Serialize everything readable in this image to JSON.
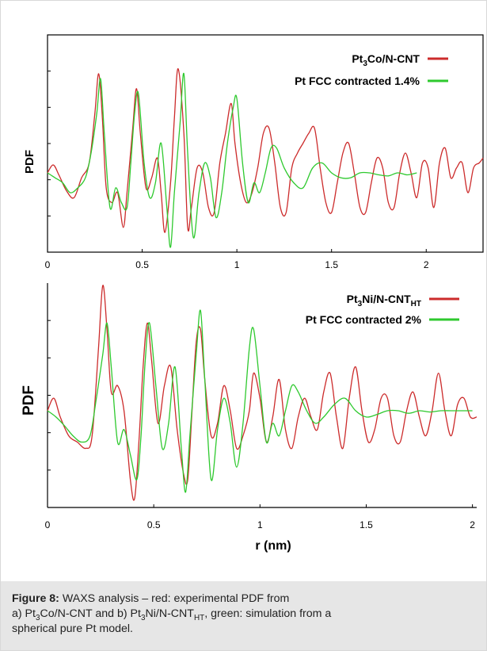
{
  "caption": {
    "label": "Figure 8:",
    "part1": " WAXS analysis – red: experimental PDF from",
    "part2_a": "a) Pt",
    "part2_sub1": "3",
    "part2_b": "Co/N-CNT and b) Pt",
    "part2_sub2": "3",
    "part2_c": "Ni/N-CNT",
    "part2_sub3": "HT",
    "part2_d": ", green: simulation from a",
    "part3": "spherical pure Pt model."
  },
  "colors": {
    "experimental": "#cc2b2b",
    "simulation": "#2ec92e",
    "axis": "#000000"
  },
  "chart_data": [
    {
      "type": "line",
      "ylabel": "PDF",
      "xlabel": "",
      "xlim": [
        0,
        2.3
      ],
      "x_ticks": [
        0,
        0.5,
        1,
        1.5,
        2
      ],
      "x_tick_labels": [
        "0",
        "0.5",
        "1",
        "1.5",
        "2"
      ],
      "legend_placement": "top-right",
      "series": [
        {
          "name": "Pt3Co/N-CNT",
          "name_parts": [
            "Pt",
            "3",
            "Co/N-CNT"
          ],
          "color": "#cc2b2b",
          "x": [
            0,
            0.03,
            0.06,
            0.1,
            0.14,
            0.18,
            0.22,
            0.25,
            0.27,
            0.29,
            0.31,
            0.34,
            0.37,
            0.4,
            0.42,
            0.45,
            0.47,
            0.49,
            0.52,
            0.55,
            0.58,
            0.6,
            0.62,
            0.65,
            0.67,
            0.69,
            0.72,
            0.74,
            0.76,
            0.79,
            0.82,
            0.85,
            0.88,
            0.91,
            0.94,
            0.97,
            0.99,
            1.02,
            1.05,
            1.08,
            1.11,
            1.14,
            1.17,
            1.2,
            1.23,
            1.26,
            1.29,
            1.32,
            1.35,
            1.38,
            1.41,
            1.44,
            1.47,
            1.5,
            1.53,
            1.56,
            1.59,
            1.62,
            1.65,
            1.68,
            1.71,
            1.74,
            1.77,
            1.8,
            1.83,
            1.86,
            1.89,
            1.92,
            1.95,
            1.98,
            2.01,
            2.04,
            2.07,
            2.1,
            2.13,
            2.16,
            2.19,
            2.22,
            2.25,
            2.28,
            2.3
          ],
          "values": [
            0.0,
            0.08,
            -0.02,
            -0.18,
            -0.25,
            -0.05,
            0.1,
            0.6,
            1.0,
            0.55,
            -0.15,
            -0.3,
            -0.2,
            -0.55,
            -0.2,
            0.45,
            0.85,
            0.4,
            -0.15,
            -0.05,
            0.15,
            -0.2,
            -0.6,
            -0.1,
            0.55,
            1.05,
            0.4,
            -0.55,
            -0.35,
            0.05,
            0.0,
            -0.35,
            -0.4,
            0.1,
            0.4,
            0.7,
            0.3,
            -0.1,
            -0.3,
            -0.2,
            0.05,
            0.4,
            0.45,
            0.1,
            -0.35,
            -0.4,
            0.05,
            0.2,
            0.3,
            0.4,
            0.45,
            0.05,
            -0.3,
            -0.4,
            -0.1,
            0.2,
            0.3,
            0.0,
            -0.35,
            -0.4,
            -0.1,
            0.15,
            0.05,
            -0.3,
            -0.35,
            0.0,
            0.2,
            0.0,
            -0.25,
            0.1,
            0.05,
            -0.35,
            0.1,
            0.25,
            -0.05,
            0.05,
            0.1,
            -0.2,
            0.05,
            0.1,
            0.15
          ]
        },
        {
          "name": "Pt FCC contracted 1.4%",
          "color": "#2ec92e",
          "x": [
            0,
            0.04,
            0.08,
            0.12,
            0.16,
            0.2,
            0.23,
            0.26,
            0.28,
            0.3,
            0.33,
            0.36,
            0.39,
            0.42,
            0.44,
            0.46,
            0.48,
            0.51,
            0.54,
            0.57,
            0.6,
            0.63,
            0.65,
            0.67,
            0.7,
            0.72,
            0.74,
            0.77,
            0.8,
            0.83,
            0.86,
            0.89,
            0.92,
            0.95,
            0.98,
            1.0,
            1.03,
            1.06,
            1.09,
            1.12,
            1.15,
            1.18,
            1.21,
            1.25,
            1.3,
            1.35,
            1.4,
            1.45,
            1.5,
            1.55,
            1.6,
            1.65,
            1.7,
            1.75,
            1.8,
            1.85,
            1.9,
            1.95
          ],
          "values": [
            0.0,
            -0.05,
            -0.1,
            -0.2,
            -0.15,
            -0.05,
            0.2,
            0.6,
            0.95,
            0.4,
            -0.35,
            -0.15,
            -0.3,
            -0.35,
            0.1,
            0.6,
            0.8,
            0.1,
            -0.25,
            -0.1,
            0.3,
            -0.35,
            -0.75,
            -0.2,
            0.5,
            1.0,
            0.2,
            -0.65,
            -0.2,
            0.1,
            -0.05,
            -0.45,
            -0.2,
            0.3,
            0.65,
            0.75,
            0.1,
            -0.3,
            -0.1,
            -0.2,
            0.0,
            0.25,
            0.25,
            0.05,
            -0.1,
            -0.15,
            0.05,
            0.1,
            0.0,
            -0.05,
            -0.05,
            0.0,
            0.0,
            -0.02,
            -0.03,
            0.0,
            -0.02,
            0.0
          ]
        }
      ]
    },
    {
      "type": "line",
      "ylabel": "PDF",
      "xlabel": "r (nm)",
      "xlim": [
        0,
        2.02
      ],
      "x_ticks": [
        0,
        0.5,
        1,
        1.5,
        2
      ],
      "x_tick_labels": [
        "0",
        "0.5",
        "1",
        "1.5",
        "2"
      ],
      "legend_placement": "top-right",
      "series": [
        {
          "name": "Pt3Ni/N-CNTHT",
          "name_parts": [
            "Pt",
            "3",
            "Ni/N-CNT",
            "HT"
          ],
          "color": "#cc2b2b",
          "x": [
            0,
            0.03,
            0.06,
            0.1,
            0.14,
            0.18,
            0.21,
            0.24,
            0.26,
            0.28,
            0.3,
            0.33,
            0.36,
            0.39,
            0.41,
            0.43,
            0.45,
            0.47,
            0.49,
            0.52,
            0.55,
            0.58,
            0.61,
            0.64,
            0.66,
            0.68,
            0.7,
            0.72,
            0.74,
            0.77,
            0.8,
            0.83,
            0.86,
            0.89,
            0.92,
            0.95,
            0.97,
            1.0,
            1.03,
            1.06,
            1.09,
            1.12,
            1.15,
            1.18,
            1.21,
            1.24,
            1.27,
            1.3,
            1.33,
            1.36,
            1.39,
            1.42,
            1.45,
            1.48,
            1.51,
            1.54,
            1.57,
            1.6,
            1.63,
            1.66,
            1.69,
            1.72,
            1.75,
            1.78,
            1.81,
            1.84,
            1.87,
            1.9,
            1.93,
            1.96,
            1.99,
            2.02
          ],
          "values": [
            0.0,
            0.1,
            -0.05,
            -0.2,
            -0.25,
            -0.3,
            -0.2,
            0.5,
            1.0,
            0.65,
            0.15,
            0.2,
            0.0,
            -0.55,
            -0.7,
            -0.25,
            0.35,
            0.7,
            0.4,
            -0.1,
            0.2,
            0.35,
            -0.15,
            -0.5,
            -0.55,
            0.0,
            0.55,
            0.65,
            0.25,
            -0.2,
            -0.1,
            0.2,
            0.0,
            -0.3,
            -0.2,
            0.0,
            0.3,
            0.1,
            -0.25,
            -0.05,
            0.25,
            -0.15,
            -0.3,
            -0.05,
            0.1,
            -0.05,
            -0.15,
            0.15,
            0.3,
            -0.05,
            -0.3,
            0.1,
            0.35,
            0.0,
            -0.25,
            -0.15,
            0.1,
            0.1,
            -0.2,
            -0.25,
            0.0,
            0.15,
            -0.05,
            -0.2,
            0.0,
            0.3,
            0.0,
            -0.2,
            0.05,
            0.1,
            -0.05,
            -0.05
          ]
        },
        {
          "name": "Pt FCC contracted 2%",
          "color": "#2ec92e",
          "x": [
            0,
            0.04,
            0.08,
            0.12,
            0.16,
            0.2,
            0.23,
            0.26,
            0.28,
            0.3,
            0.33,
            0.36,
            0.39,
            0.42,
            0.44,
            0.46,
            0.48,
            0.51,
            0.54,
            0.57,
            0.6,
            0.63,
            0.65,
            0.67,
            0.7,
            0.72,
            0.74,
            0.77,
            0.8,
            0.83,
            0.86,
            0.89,
            0.92,
            0.95,
            0.97,
            1.0,
            1.03,
            1.06,
            1.09,
            1.12,
            1.15,
            1.18,
            1.22,
            1.26,
            1.3,
            1.35,
            1.4,
            1.45,
            1.5,
            1.55,
            1.6,
            1.65,
            1.7,
            1.75,
            1.8,
            1.85,
            1.9,
            1.95,
            2.0
          ],
          "values": [
            0.0,
            -0.05,
            -0.12,
            -0.2,
            -0.25,
            -0.2,
            0.1,
            0.45,
            0.7,
            0.35,
            -0.25,
            -0.15,
            -0.35,
            -0.55,
            -0.2,
            0.4,
            0.7,
            0.2,
            -0.3,
            -0.1,
            0.35,
            -0.3,
            -0.65,
            -0.2,
            0.45,
            0.8,
            0.25,
            -0.55,
            -0.15,
            0.1,
            -0.1,
            -0.45,
            -0.1,
            0.5,
            0.65,
            0.2,
            -0.25,
            -0.1,
            -0.2,
            0.0,
            0.2,
            0.15,
            0.0,
            -0.1,
            -0.05,
            0.05,
            0.1,
            0.0,
            -0.05,
            -0.03,
            0.0,
            0.0,
            -0.02,
            0.0,
            -0.01,
            0.0,
            0.0,
            0.0,
            0.0
          ]
        }
      ]
    }
  ]
}
